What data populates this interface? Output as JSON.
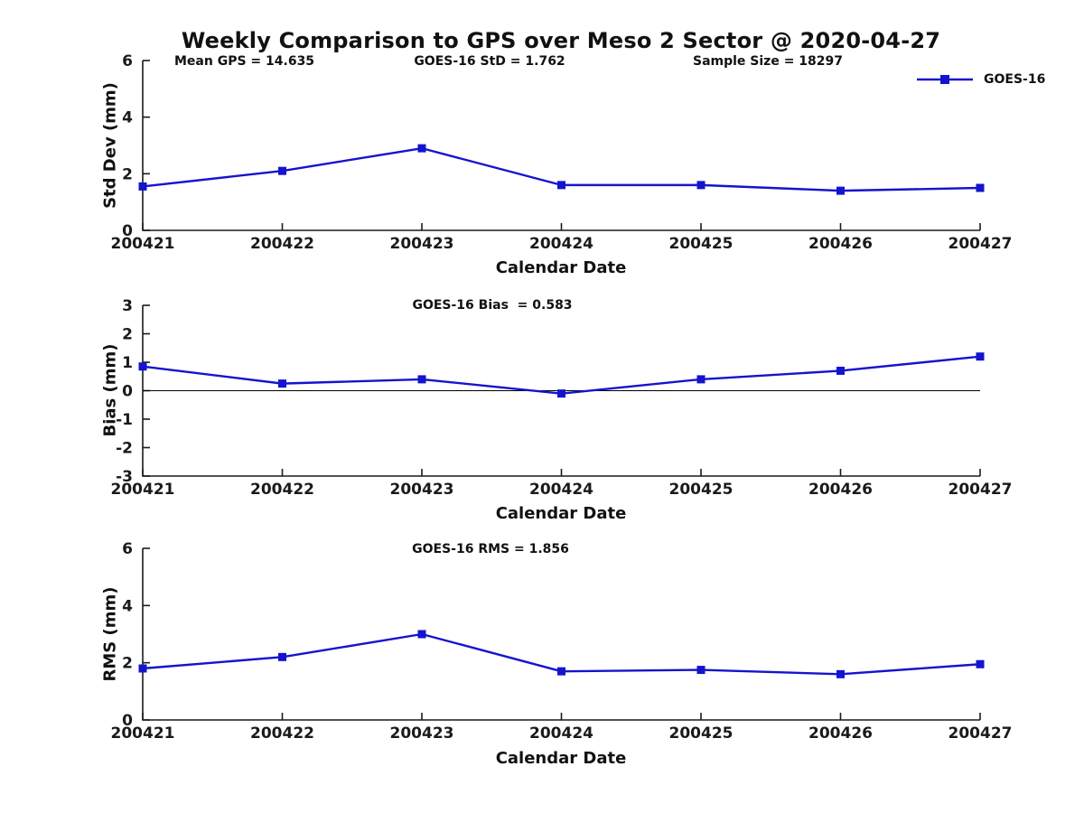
{
  "title": "Weekly Comparison to GPS over Meso 2 Sector @ 2020-04-27",
  "colors": {
    "line": "#1414CE",
    "axis": "#1a1a1a",
    "text": "#111111",
    "zero_line": "#000000",
    "background": "#ffffff"
  },
  "legend": {
    "label": "GOES-16",
    "position": "top-right"
  },
  "chart_data": [
    {
      "type": "line",
      "panel": "std-dev",
      "annotations": [
        "Mean GPS = 14.635",
        "GOES-16 StD = 1.762",
        "Sample Size = 18297"
      ],
      "categories": [
        "200421",
        "200422",
        "200423",
        "200424",
        "200425",
        "200426",
        "200427"
      ],
      "series": [
        {
          "name": "GOES-16",
          "values": [
            1.55,
            2.1,
            2.9,
            1.6,
            1.6,
            1.4,
            1.5
          ]
        }
      ],
      "xlabel": "Calendar Date",
      "ylabel": "Std Dev (mm)",
      "ylim": [
        0,
        6
      ],
      "yticks": [
        0,
        2,
        4,
        6
      ],
      "zero_line": false,
      "grid": false,
      "marker": "square"
    },
    {
      "type": "line",
      "panel": "bias",
      "annotations": [
        "GOES-16 Bias  = 0.583"
      ],
      "categories": [
        "200421",
        "200422",
        "200423",
        "200424",
        "200425",
        "200426",
        "200427"
      ],
      "series": [
        {
          "name": "GOES-16",
          "values": [
            0.85,
            0.25,
            0.4,
            -0.1,
            0.4,
            0.7,
            1.2
          ]
        }
      ],
      "xlabel": "Calendar Date",
      "ylabel": "Bias (mm)",
      "ylim": [
        -3,
        3
      ],
      "yticks": [
        -3,
        -2,
        -1,
        0,
        1,
        2,
        3
      ],
      "zero_line": true,
      "grid": false,
      "marker": "square"
    },
    {
      "type": "line",
      "panel": "rms",
      "annotations": [
        "GOES-16 RMS = 1.856"
      ],
      "categories": [
        "200421",
        "200422",
        "200423",
        "200424",
        "200425",
        "200426",
        "200427"
      ],
      "series": [
        {
          "name": "GOES-16",
          "values": [
            1.8,
            2.2,
            3.0,
            1.7,
            1.75,
            1.6,
            1.95
          ]
        }
      ],
      "xlabel": "Calendar Date",
      "ylabel": "RMS (mm)",
      "ylim": [
        0,
        6
      ],
      "yticks": [
        0,
        2,
        4,
        6
      ],
      "zero_line": false,
      "grid": false,
      "marker": "square"
    }
  ]
}
